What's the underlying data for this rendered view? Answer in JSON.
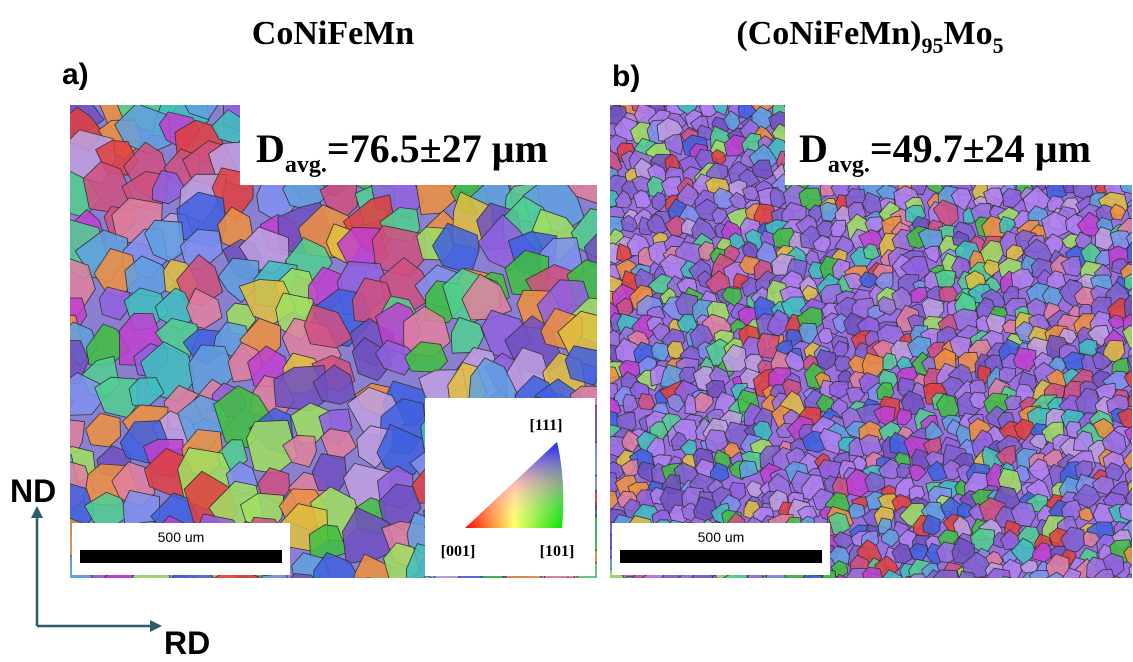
{
  "panels": [
    {
      "label": "a)",
      "title": [
        "CoNiFeMn"
      ],
      "grain_size": {
        "symbol": "D",
        "subscript": "avg.",
        "value": "=76.5±27 µm"
      },
      "scale_bar": "500 um",
      "ipf_key": {
        "top": "[111]",
        "left": "[001]",
        "right": "[101]"
      }
    },
    {
      "label": "b)",
      "title": [
        "(CoNiFeMn)",
        "95",
        "Mo",
        "5"
      ],
      "grain_size": {
        "symbol": "D",
        "subscript": "avg.",
        "value": "=49.7±24 µm"
      },
      "scale_bar": "500 um"
    }
  ],
  "axes": {
    "vertical": "ND",
    "horizontal": "RD"
  }
}
